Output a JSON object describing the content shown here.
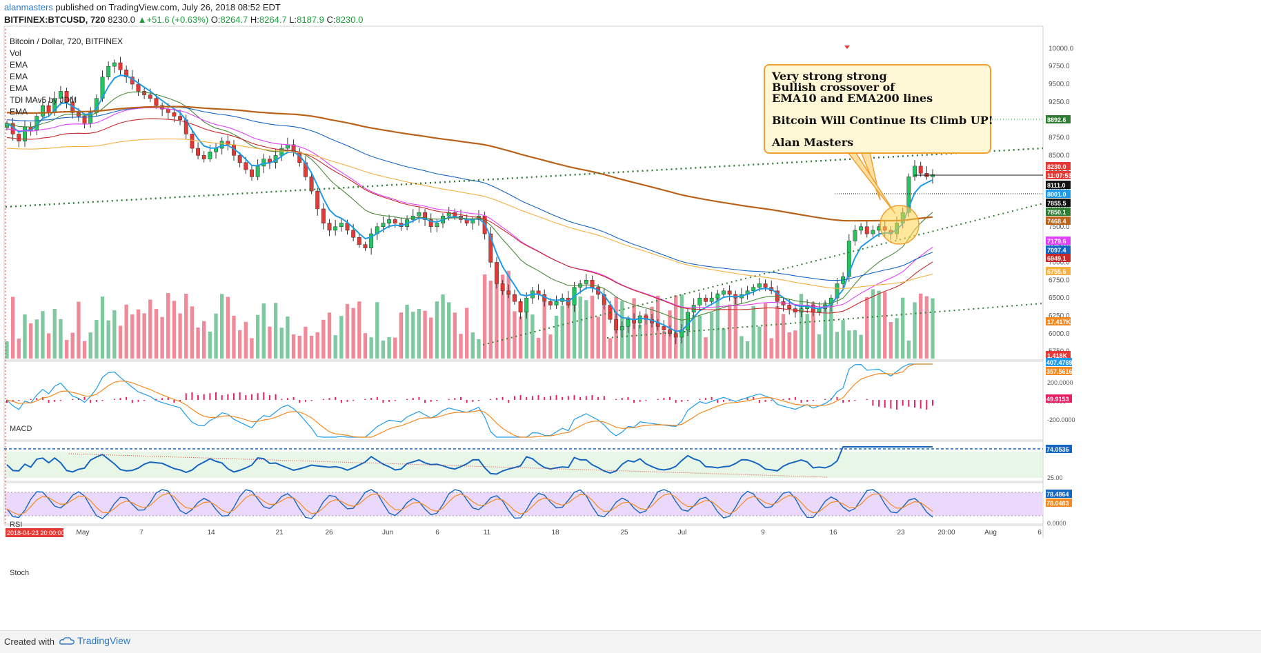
{
  "header": {
    "user": "alanmasters",
    "published": " published on TradingView.com, July 26, 2018 08:52 EDT",
    "symbol": "BITFINEX:BTCUSD, 720",
    "price": "8230.0",
    "change": "+51.6 (+0.63%)",
    "o_label": "O:",
    "o": "8264.7",
    "h_label": "H:",
    "h": "8264.7",
    "l_label": "L:",
    "l": "8187.9",
    "c_label": "C:",
    "c": "8230.0"
  },
  "legend": [
    "Bitcoin / Dollar, 720, BITFINEX",
    "Vol",
    "EMA",
    "EMA",
    "EMA",
    "TDI MAv5 by JDM",
    "EMA"
  ],
  "annotation": {
    "lines": [
      "Very strong strong",
      "Bullish crossover of",
      "EMA10 and EMA200 lines",
      "",
      "Bitcoin Will Continue Its Climb UP!",
      "",
      "Alan Masters"
    ]
  },
  "panes": {
    "macd": "MACD",
    "rsi": "RSI",
    "stoch": "Stoch"
  },
  "footer": {
    "created": "Created with",
    "brand": "TradingView"
  },
  "colors": {
    "up": "#22c55e",
    "down": "#e53935",
    "ema10": "#1e9be8",
    "ema200": "#b9621a",
    "volume_up": "#7fc9a0",
    "volume_down": "#f08a98"
  },
  "chart_data": {
    "type": "candlestick",
    "price_axis": {
      "ticks": [
        10000.0,
        9750.0,
        9500.0,
        9250.0,
        9000.0,
        8750.0,
        8500.0,
        8250.0,
        8000.0,
        7750.0,
        7500.0,
        7250.0,
        7000.0,
        6750.0,
        6500.0,
        6250.0,
        6000.0,
        5750.0
      ],
      "ylim": [
        5650,
        10100
      ]
    },
    "price_labels": [
      {
        "value": "8892.6",
        "color": "#2e7d32"
      },
      {
        "value": "8230.0",
        "color": "#e53935"
      },
      {
        "value": "11:07:53",
        "color": "#e53935"
      },
      {
        "value": "8111.0",
        "color": "#111111"
      },
      {
        "value": "8001.0",
        "color": "#1e9be8"
      },
      {
        "value": "7855.5",
        "color": "#111111"
      },
      {
        "value": "7850.1",
        "color": "#2e7d32"
      },
      {
        "value": "7468.4",
        "color": "#b9621a"
      },
      {
        "value": "7179.6",
        "color": "#e040fb"
      },
      {
        "value": "7097.4",
        "color": "#1565c0"
      },
      {
        "value": "6949.1",
        "color": "#c62828"
      },
      {
        "value": "6755.6",
        "color": "#f5b041"
      },
      {
        "value": "17.417K",
        "color": "#f5891f"
      },
      {
        "value": "1.418K",
        "color": "#e53935"
      }
    ],
    "macd_axis": {
      "ticks": [
        200.0,
        0.0,
        -200.0
      ]
    },
    "macd_labels": [
      {
        "value": "407.4769",
        "color": "#1e9be8"
      },
      {
        "value": "357.5616",
        "color": "#f5891f"
      },
      {
        "value": "49.9153",
        "color": "#e91e63"
      }
    ],
    "rsi_axis": {
      "ticks": [
        25.0
      ]
    },
    "rsi_labels": [
      {
        "value": "74.0536",
        "color": "#1565c0"
      }
    ],
    "stoch_axis": {
      "ticks": [
        0.0
      ]
    },
    "stoch_labels": [
      {
        "value": "78.4864",
        "color": "#1565c0"
      },
      {
        "value": "78.0483",
        "color": "#f5891f"
      }
    ],
    "time_axis": [
      "May",
      "7",
      "14",
      "21",
      "26",
      "Jun",
      "6",
      "11",
      "18",
      "25",
      "Jul",
      "9",
      "16",
      "23",
      "20:00",
      "Aug",
      "6"
    ],
    "time_cursor": "2018-04-23 20:00:00",
    "close_series": [
      8950,
      8800,
      8700,
      8900,
      8850,
      9050,
      9200,
      9100,
      9300,
      9400,
      9250,
      9100,
      9050,
      8950,
      9100,
      9300,
      9600,
      9750,
      9800,
      9700,
      9600,
      9500,
      9400,
      9350,
      9300,
      9200,
      9150,
      9100,
      9050,
      9000,
      8800,
      8600,
      8500,
      8450,
      8550,
      8600,
      8700,
      8650,
      8500,
      8400,
      8300,
      8200,
      8350,
      8450,
      8400,
      8500,
      8600,
      8650,
      8550,
      8400,
      8200,
      8000,
      7750,
      7550,
      7450,
      7500,
      7550,
      7450,
      7350,
      7250,
      7200,
      7400,
      7500,
      7550,
      7600,
      7550,
      7500,
      7600,
      7650,
      7700,
      7600,
      7500,
      7550,
      7650,
      7700,
      7650,
      7600,
      7550,
      7600,
      7650,
      7400,
      7000,
      6700,
      6600,
      6550,
      6450,
      6300,
      6500,
      6600,
      6550,
      6450,
      6400,
      6450,
      6500,
      6400,
      6650,
      6700,
      6750,
      6650,
      6550,
      6400,
      6200,
      6050,
      6100,
      6200,
      6150,
      6250,
      6200,
      6150,
      6100,
      6050,
      6000,
      5950,
      6050,
      6300,
      6400,
      6500,
      6450,
      6500,
      6550,
      6600,
      6550,
      6500,
      6550,
      6600,
      6650,
      6700,
      6650,
      6600,
      6450,
      6400,
      6350,
      6300,
      6350,
      6400,
      6300,
      6350,
      6400,
      6500,
      6700,
      6800,
      7300,
      7450,
      7500,
      7400,
      7450,
      7500,
      7450,
      7400,
      7550,
      7700,
      8200,
      8350,
      8250,
      8200,
      8230
    ]
  }
}
